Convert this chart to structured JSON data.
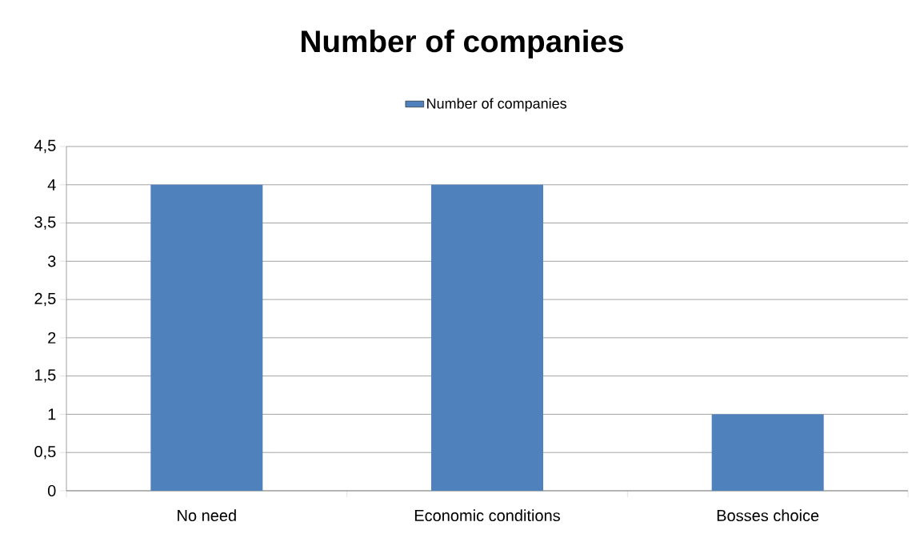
{
  "chart_data": {
    "type": "bar",
    "title": "Number of companies",
    "categories": [
      "No need",
      "Economic conditions",
      "Bosses choice"
    ],
    "series": [
      {
        "name": "Number of companies",
        "color": "#4f81bd",
        "values": [
          4,
          4,
          1
        ]
      }
    ],
    "ylim": [
      0,
      4.5
    ],
    "yticks": [
      0,
      {
        "value": 0.5,
        "label": "0,5"
      },
      1,
      {
        "value": 1.5,
        "label": "1,5"
      },
      2,
      {
        "value": 2.5,
        "label": "2,5"
      },
      3,
      {
        "value": 3.5,
        "label": "3,5"
      },
      4,
      {
        "value": 4.5,
        "label": "4,5"
      }
    ],
    "grid": "y",
    "legend": "top"
  }
}
